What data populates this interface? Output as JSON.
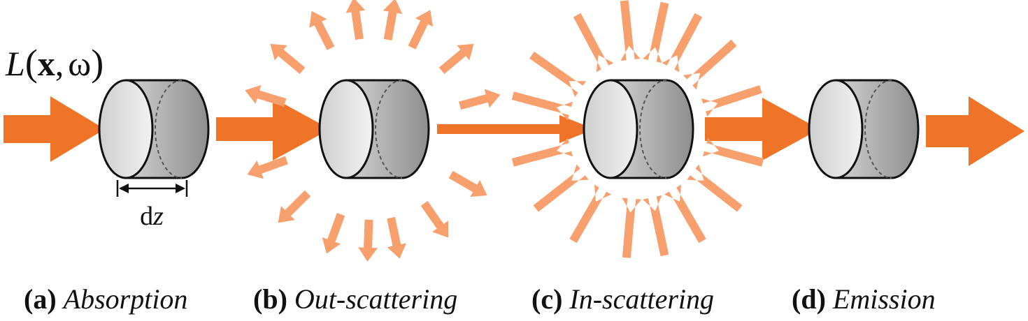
{
  "radiance": {
    "func": "L",
    "open": "(",
    "x": "x",
    "comma": ",",
    "omega": "ω",
    "close": ")"
  },
  "differential": {
    "d": "d",
    "z": "z"
  },
  "panels": [
    {
      "tag": "(a)",
      "name": "Absorption"
    },
    {
      "tag": "(b)",
      "name": "Out-scattering"
    },
    {
      "tag": "(c)",
      "name": "In-scattering"
    },
    {
      "tag": "(d)",
      "name": "Emission"
    }
  ],
  "colors": {
    "beam": "#f07427",
    "scatter": "#f8a06d",
    "cylinder_light": "#eaeaea",
    "cylinder_dark": "#8c8c8c",
    "outline": "#111111"
  }
}
